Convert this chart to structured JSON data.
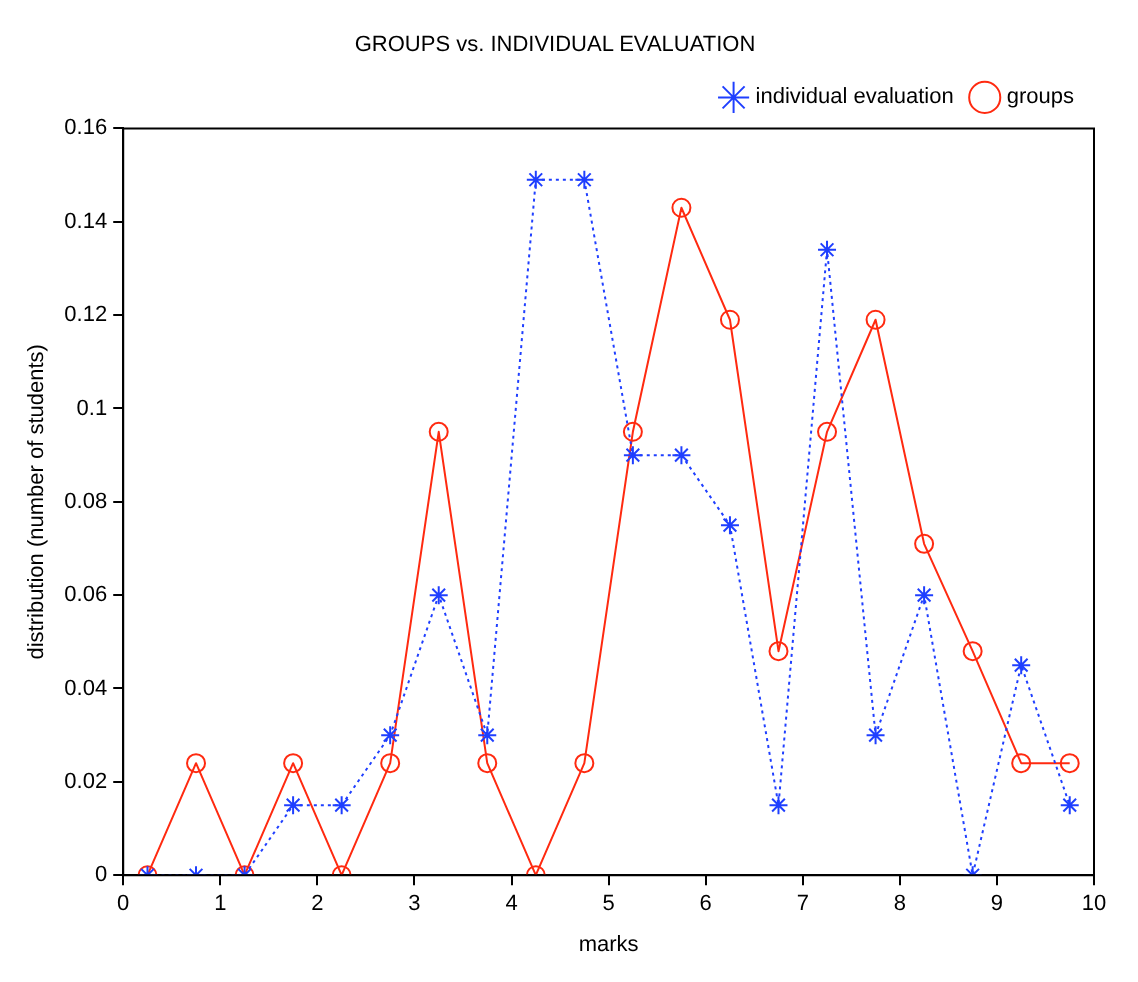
{
  "chart_data": {
    "type": "line",
    "title": "GROUPS vs. INDIVIDUAL EVALUATION",
    "xlabel": "marks",
    "ylabel": "distribution (number of students)",
    "x": [
      0.25,
      0.75,
      1.25,
      1.75,
      2.25,
      2.75,
      3.25,
      3.75,
      4.25,
      4.75,
      5.25,
      5.75,
      6.25,
      6.75,
      7.25,
      7.75,
      8.25,
      8.75,
      9.25,
      9.75
    ],
    "series": [
      {
        "name": "individual evaluation",
        "color": "#1f3fff",
        "marker": "cross",
        "line_style": "dotted",
        "values": [
          0,
          0,
          0,
          0.015,
          0.015,
          0.03,
          0.06,
          0.03,
          0.149,
          0.149,
          0.09,
          0.09,
          0.075,
          0.015,
          0.134,
          0.03,
          0.06,
          0,
          0.045,
          0.015
        ]
      },
      {
        "name": "groups",
        "color": "#ff2a10",
        "marker": "circle",
        "line_style": "solid",
        "values": [
          0,
          0.024,
          0,
          0.024,
          0,
          0.024,
          0.095,
          0.024,
          0,
          0.024,
          0.095,
          0.143,
          0.119,
          0.048,
          0.095,
          0.119,
          0.071,
          0.048,
          0.024,
          0.024
        ]
      }
    ],
    "xlim": [
      0,
      10
    ],
    "xticks": [
      0,
      1,
      2,
      3,
      4,
      5,
      6,
      7,
      8,
      9,
      10
    ],
    "ylim": [
      0,
      0.16
    ],
    "yticks": [
      0,
      0.02,
      0.04,
      0.06,
      0.08,
      0.1,
      0.12,
      0.14,
      0.16
    ],
    "grid": false,
    "legend": "top right"
  }
}
